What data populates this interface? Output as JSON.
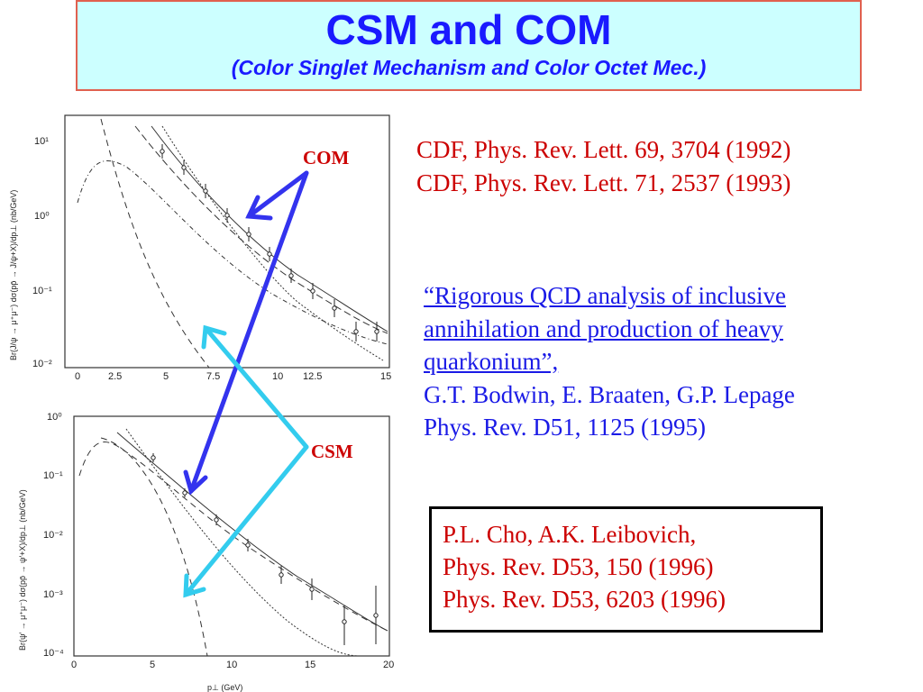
{
  "title": {
    "main": "CSM  and COM",
    "sub": "(Color Singlet Mechanism and Color Octet Mec.)"
  },
  "refs_cdf": [
    "CDF, Phys. Rev. Lett. 69, 3704 (1992)",
    "CDF, Phys. Rev. Lett. 71, 2537 (1993)"
  ],
  "bodwin": {
    "link_lines": [
      "“Rigorous QCD analysis of inclusive",
      "annihilation and production of heavy",
      "quarkonium”,"
    ],
    "authors": "G.T. Bodwin, E. Braaten, G.P. Lepage",
    "journal": "Phys. Rev. D51, 1125 (1995)"
  },
  "cho_box": [
    "P.L. Cho, A.K. Leibovich,",
    "Phys. Rev. D53,   150 (1996)",
    "Phys. Rev. D53, 6203 (1996)"
  ],
  "labels": {
    "com": "COM",
    "csm": "CSM"
  },
  "colors": {
    "title_bg": "#ccffff",
    "title_text": "#1a1aff",
    "ref_red": "#cc0000",
    "link_blue": "#1a1ae6",
    "arrow_com": "#3333ee",
    "arrow_csm": "#33ccee"
  },
  "top_plot": {
    "y_axis_label": "Br(J/ψ → μ⁺μ⁻) dσ(pp̄ → J/ψ+X)/dp⊥ (nb/GeV)",
    "y_ticks": [
      "10¹",
      "10⁰",
      "10⁻¹",
      "10⁻²"
    ],
    "x_ticks": [
      "0",
      "2.5",
      "5",
      "7.5",
      "10",
      "12.5",
      "15"
    ]
  },
  "bottom_plot": {
    "y_axis_label": "Br(ψ′ → μ⁺μ⁻) dσ(pp̄ → ψ′+X)/dp⊥ (nb/GeV)",
    "y_ticks": [
      "10⁰",
      "10⁻¹",
      "10⁻²",
      "10⁻³",
      "10⁻⁴"
    ],
    "x_ticks": [
      "0",
      "5",
      "10",
      "15",
      "20"
    ],
    "x_label": "p⊥ (GeV)"
  }
}
